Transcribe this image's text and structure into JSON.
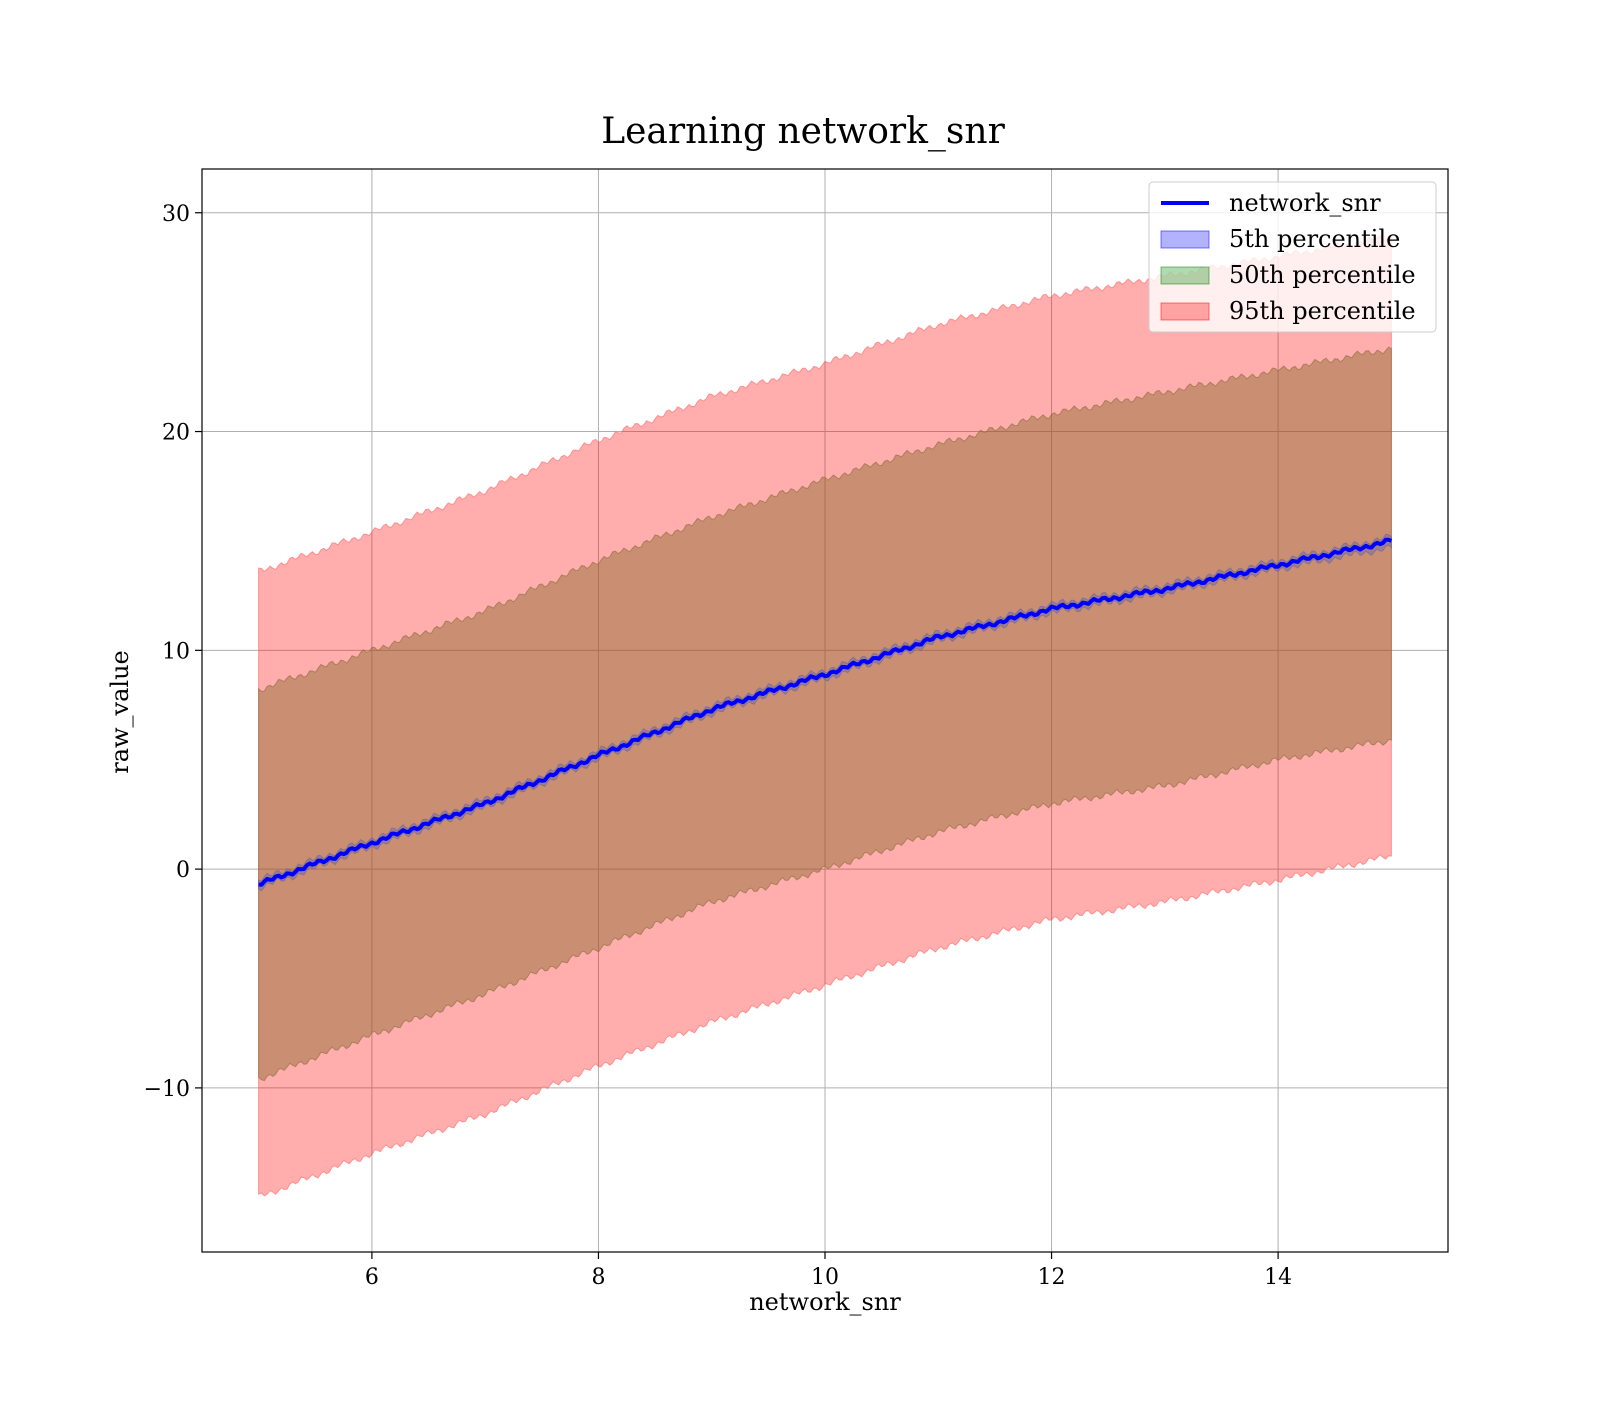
{
  "chart_data": {
    "type": "area",
    "title": "Learning network_snr",
    "xlabel": "network_snr",
    "ylabel": "raw_value",
    "xlim": [
      4.5,
      15.5
    ],
    "ylim": [
      -17.5,
      32
    ],
    "x_ticks": [
      6,
      8,
      10,
      12,
      14
    ],
    "y_ticks": [
      -10,
      0,
      10,
      20,
      30
    ],
    "x_tick_labels": [
      "6",
      "8",
      "10",
      "12",
      "14"
    ],
    "y_tick_labels": [
      "−10",
      "0",
      "10",
      "20",
      "30"
    ],
    "grid": true,
    "legend_position": "top-right",
    "x": [
      5,
      6,
      7,
      8,
      9,
      10,
      11,
      12,
      13,
      14,
      15
    ],
    "series": [
      {
        "name": "network_snr",
        "kind": "line",
        "color": "#0000ff",
        "values": [
          -0.7,
          1.2,
          3.0,
          5.2,
          7.3,
          8.9,
          10.6,
          11.9,
          12.8,
          13.9,
          15.0
        ]
      },
      {
        "name": "5th percentile",
        "kind": "band",
        "color": "#0000ff",
        "lower": [
          -0.9,
          1.0,
          2.8,
          5.0,
          7.1,
          8.7,
          10.4,
          11.7,
          12.6,
          13.7,
          14.7
        ],
        "upper": [
          -0.5,
          1.4,
          3.2,
          5.4,
          7.5,
          9.1,
          10.8,
          12.1,
          13.0,
          14.1,
          15.2
        ]
      },
      {
        "name": "50th percentile",
        "kind": "band",
        "color": "#008000",
        "lower": [
          -9.6,
          -7.6,
          -5.7,
          -3.6,
          -1.5,
          0.0,
          1.7,
          3.0,
          3.8,
          5.0,
          5.9
        ],
        "upper": [
          8.2,
          10.0,
          11.8,
          14.1,
          16.1,
          17.8,
          19.4,
          20.8,
          21.8,
          22.8,
          23.8
        ]
      },
      {
        "name": "95th percentile",
        "kind": "band",
        "color": "#ff0000",
        "lower": [
          -15.0,
          -13.0,
          -11.2,
          -9.0,
          -7.0,
          -5.3,
          -3.6,
          -2.3,
          -1.5,
          -0.5,
          0.6
        ],
        "upper": [
          13.6,
          15.4,
          17.3,
          19.6,
          21.6,
          23.1,
          24.9,
          26.2,
          27.1,
          28.0,
          28.9
        ]
      }
    ]
  }
}
